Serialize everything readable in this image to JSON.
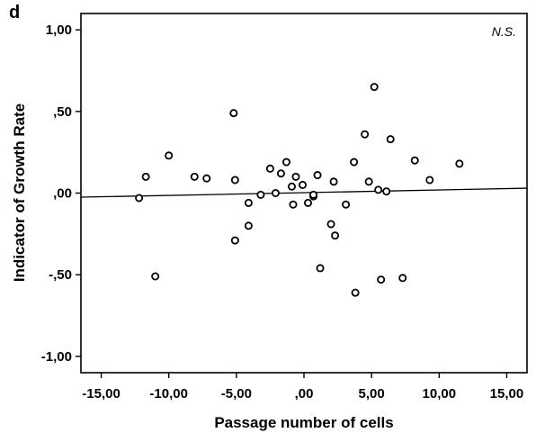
{
  "panel_label": "d",
  "chart_data": {
    "type": "scatter",
    "xlabel": "Passage number of cells",
    "ylabel": "Indicator of Growth Rate",
    "annotation": "N.S.",
    "xlim": [
      -16.5,
      16.5
    ],
    "ylim": [
      -1.1,
      1.1
    ],
    "xticks": [
      -15,
      -10,
      -5,
      0,
      5,
      10,
      15
    ],
    "xtick_labels": [
      "-15,00",
      "-10,00",
      "-5,00",
      ",00",
      "5,00",
      "10,00",
      "15,00"
    ],
    "yticks": [
      1,
      0.5,
      0,
      -0.5,
      -1
    ],
    "ytick_labels": [
      "1,00",
      ",50",
      ",00",
      "-,50",
      "-1,00"
    ],
    "grid": false,
    "points": [
      {
        "x": -12.2,
        "y": -0.03
      },
      {
        "x": -11.7,
        "y": 0.1
      },
      {
        "x": -11.0,
        "y": -0.51
      },
      {
        "x": -10.0,
        "y": 0.23
      },
      {
        "x": -8.1,
        "y": 0.1
      },
      {
        "x": -7.2,
        "y": 0.09
      },
      {
        "x": -5.2,
        "y": 0.49
      },
      {
        "x": -5.1,
        "y": 0.08
      },
      {
        "x": -5.1,
        "y": -0.29
      },
      {
        "x": -4.1,
        "y": -0.06
      },
      {
        "x": -4.1,
        "y": -0.2
      },
      {
        "x": -3.2,
        "y": -0.01
      },
      {
        "x": -2.5,
        "y": 0.15
      },
      {
        "x": -2.1,
        "y": 0.0
      },
      {
        "x": -1.7,
        "y": 0.12
      },
      {
        "x": -1.3,
        "y": 0.19
      },
      {
        "x": -0.9,
        "y": 0.04
      },
      {
        "x": -0.8,
        "y": -0.07
      },
      {
        "x": -0.6,
        "y": 0.1
      },
      {
        "x": -0.1,
        "y": 0.05
      },
      {
        "x": 0.3,
        "y": -0.06
      },
      {
        "x": 0.7,
        "y": -0.02
      },
      {
        "x": 0.7,
        "y": -0.01
      },
      {
        "x": 1.0,
        "y": 0.11
      },
      {
        "x": 1.2,
        "y": -0.46
      },
      {
        "x": 2.0,
        "y": -0.19
      },
      {
        "x": 2.2,
        "y": 0.07
      },
      {
        "x": 2.3,
        "y": -0.26
      },
      {
        "x": 3.1,
        "y": -0.07
      },
      {
        "x": 3.7,
        "y": 0.19
      },
      {
        "x": 3.8,
        "y": -0.61
      },
      {
        "x": 4.5,
        "y": 0.36
      },
      {
        "x": 4.8,
        "y": 0.07
      },
      {
        "x": 5.2,
        "y": 0.65
      },
      {
        "x": 5.5,
        "y": 0.02
      },
      {
        "x": 5.7,
        "y": -0.53
      },
      {
        "x": 6.1,
        "y": 0.01
      },
      {
        "x": 6.4,
        "y": 0.33
      },
      {
        "x": 7.3,
        "y": -0.52
      },
      {
        "x": 8.2,
        "y": 0.2
      },
      {
        "x": 9.3,
        "y": 0.08
      },
      {
        "x": 11.5,
        "y": 0.18
      }
    ],
    "fit_line": {
      "x": [
        -16.5,
        16.5
      ],
      "y": [
        -0.025,
        0.03
      ]
    }
  }
}
